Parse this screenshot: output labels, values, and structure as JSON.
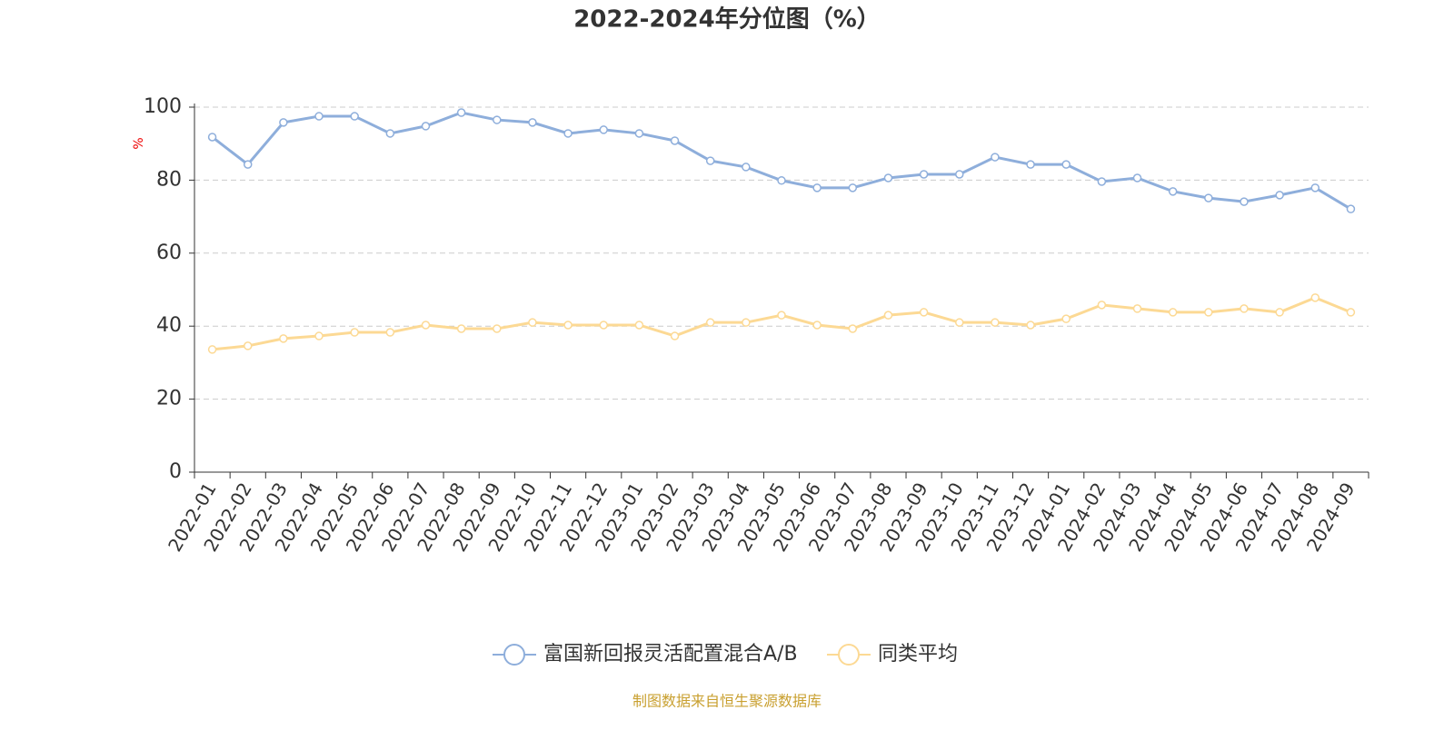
{
  "chart_data": {
    "type": "line",
    "title": "2022-2024年分位图（%）",
    "y_label": "%",
    "source": "制图数据来自恒生聚源数据库",
    "categories": [
      "2022-01",
      "2022-02",
      "2022-03",
      "2022-04",
      "2022-05",
      "2022-06",
      "2022-07",
      "2022-08",
      "2022-09",
      "2022-10",
      "2022-11",
      "2022-12",
      "2023-01",
      "2023-02",
      "2023-03",
      "2023-04",
      "2023-05",
      "2023-06",
      "2023-07",
      "2023-08",
      "2023-09",
      "2023-10",
      "2023-11",
      "2023-12",
      "2024-01",
      "2024-02",
      "2024-03",
      "2024-04",
      "2024-05",
      "2024-06",
      "2024-07",
      "2024-08",
      "2024-09"
    ],
    "series": [
      {
        "name": "富国新回报灵活配置混合A/B",
        "color": "#8eaedb",
        "values": [
          91.8,
          84.3,
          95.8,
          97.5,
          97.5,
          92.8,
          94.8,
          98.5,
          96.5,
          95.8,
          92.8,
          93.8,
          92.8,
          90.8,
          85.3,
          83.6,
          79.9,
          77.9,
          77.9,
          80.6,
          81.6,
          81.6,
          86.3,
          84.3,
          84.3,
          79.6,
          80.6,
          76.9,
          75.1,
          74.1,
          75.9,
          77.9,
          72.1
        ]
      },
      {
        "name": "同类平均",
        "color": "#fcd994",
        "values": [
          33.6,
          34.6,
          36.6,
          37.3,
          38.3,
          38.3,
          40.3,
          39.3,
          39.3,
          41,
          40.3,
          40.3,
          40.3,
          37.3,
          41,
          41,
          43,
          40.3,
          39.3,
          43,
          43.8,
          41,
          41,
          40.3,
          42,
          45.8,
          44.8,
          43.8,
          43.8,
          44.8,
          43.8,
          47.8,
          43.8
        ]
      }
    ],
    "ylim": [
      0,
      100
    ],
    "yticks": [
      0,
      20,
      40,
      60,
      80,
      100
    ],
    "grid": true
  }
}
